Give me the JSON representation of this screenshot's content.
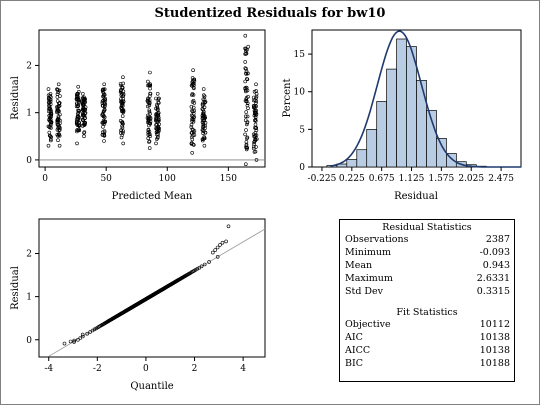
{
  "title": "Studentized Residuals for bw10",
  "chart_data": [
    {
      "type": "scatter",
      "panel": "residual-vs-predicted",
      "xlabel": "Predicted Mean",
      "ylabel": "Residual",
      "xlim": [
        -5,
        180
      ],
      "ylim": [
        -0.15,
        2.75
      ],
      "xticks": [
        0,
        50,
        100,
        150
      ],
      "yticks": [
        0,
        1,
        2
      ],
      "reference_line_y": 0,
      "clusters": [
        {
          "x": 4,
          "y": [
            0.3,
            1.5
          ]
        },
        {
          "x": 11,
          "y": [
            0.3,
            1.6
          ]
        },
        {
          "x": 27,
          "y": [
            0.35,
            1.55
          ]
        },
        {
          "x": 32,
          "y": [
            0.5,
            1.4
          ]
        },
        {
          "x": 48,
          "y": [
            0.4,
            1.6
          ]
        },
        {
          "x": 63,
          "y": [
            0.35,
            1.75
          ]
        },
        {
          "x": 85,
          "y": [
            0.25,
            1.85
          ]
        },
        {
          "x": 92,
          "y": [
            0.35,
            1.4
          ]
        },
        {
          "x": 121,
          "y": [
            0.15,
            1.9
          ]
        },
        {
          "x": 130,
          "y": [
            0.3,
            1.5
          ]
        },
        {
          "x": 165,
          "y": [
            -0.09,
            2.63
          ]
        },
        {
          "x": 172,
          "y": [
            0.0,
            1.6
          ]
        }
      ]
    },
    {
      "type": "bar",
      "panel": "histogram",
      "xlabel": "Residual",
      "ylabel": "Percent",
      "xlim": [
        -0.375,
        2.775
      ],
      "ylim": [
        0,
        18.2
      ],
      "xticks": [
        "-0.225",
        "0.225",
        "0.675",
        "1.125",
        "1.575",
        "2.025",
        "2.475"
      ],
      "yticks": [
        0,
        5,
        10,
        15
      ],
      "bin_width": 0.15,
      "bins": [
        {
          "x": -0.075,
          "value": 0.2
        },
        {
          "x": 0.075,
          "value": 0.4
        },
        {
          "x": 0.225,
          "value": 1.0
        },
        {
          "x": 0.375,
          "value": 2.3
        },
        {
          "x": 0.525,
          "value": 5.0
        },
        {
          "x": 0.675,
          "value": 8.7
        },
        {
          "x": 0.825,
          "value": 13.0
        },
        {
          "x": 0.975,
          "value": 17.0
        },
        {
          "x": 1.125,
          "value": 16.0
        },
        {
          "x": 1.275,
          "value": 11.5
        },
        {
          "x": 1.425,
          "value": 7.5
        },
        {
          "x": 1.575,
          "value": 3.8
        },
        {
          "x": 1.725,
          "value": 1.8
        },
        {
          "x": 1.875,
          "value": 0.7
        },
        {
          "x": 2.025,
          "value": 0.3
        },
        {
          "x": 2.175,
          "value": 0.1
        }
      ],
      "normal_curve": {
        "mean": 0.943,
        "sd": 0.3315
      },
      "fill_color": "#b8cce4",
      "curve_color": "#1f3a6e"
    },
    {
      "type": "scatter",
      "panel": "qq-plot",
      "xlabel": "Quantile",
      "ylabel": "Residual",
      "xlim": [
        -4.4,
        4.9
      ],
      "ylim": [
        -0.4,
        2.8
      ],
      "xticks": [
        -4,
        -2,
        0,
        2,
        4
      ],
      "yticks": [
        0,
        1,
        2
      ],
      "n": 2387,
      "min_residual": -0.093,
      "max_residual": 2.6331,
      "reference_line": {
        "intercept": 0.943,
        "slope": 0.3315
      }
    }
  ],
  "residual_statistics": {
    "title": "Residual Statistics",
    "rows": [
      {
        "label": "Observations",
        "value": "2387"
      },
      {
        "label": "Minimum",
        "value": "-0.093"
      },
      {
        "label": "Mean",
        "value": "0.943"
      },
      {
        "label": "Maximum",
        "value": "2.6331"
      },
      {
        "label": "Std Dev",
        "value": "0.3315"
      }
    ]
  },
  "fit_statistics": {
    "title": "Fit Statistics",
    "rows": [
      {
        "label": "Objective",
        "value": "10112"
      },
      {
        "label": "AIC",
        "value": "10138"
      },
      {
        "label": "AICC",
        "value": "10138"
      },
      {
        "label": "BIC",
        "value": "10188"
      }
    ]
  }
}
